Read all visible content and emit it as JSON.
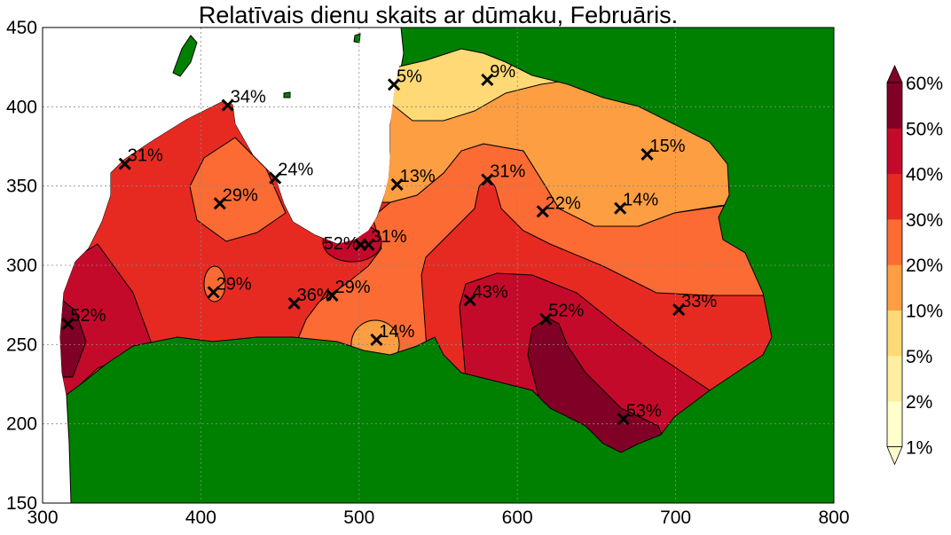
{
  "chart_data": {
    "type": "contour-map",
    "title": "Relatīvais dienu skaits ar dūmaku, Februāris.",
    "xlim": [
      300,
      800
    ],
    "ylim": [
      150,
      450
    ],
    "xticks": [
      "300",
      "400",
      "500",
      "600",
      "700",
      "800"
    ],
    "yticks": [
      "150",
      "200",
      "250",
      "300",
      "350",
      "400",
      "450"
    ],
    "grid": true,
    "colorbar": {
      "levels": [
        "1%",
        "2%",
        "5%",
        "10%",
        "20%",
        "30%",
        "40%",
        "50%",
        "60%"
      ],
      "colors": [
        "#ffffcc",
        "#ffeda0",
        "#fed976",
        "#fd9e43",
        "#fc6b33",
        "#e62a22",
        "#c40a2a",
        "#800026"
      ],
      "extend": "both",
      "placement": "right"
    },
    "land_color": "#008000",
    "stations": [
      {
        "label": "5%",
        "x": 522,
        "y": 414
      },
      {
        "label": "9%",
        "x": 581,
        "y": 417
      },
      {
        "label": "34%",
        "x": 417,
        "y": 401
      },
      {
        "label": "31%",
        "x": 352,
        "y": 364
      },
      {
        "label": "15%",
        "x": 682,
        "y": 370
      },
      {
        "label": "24%",
        "x": 447,
        "y": 355
      },
      {
        "label": "13%",
        "x": 524,
        "y": 351
      },
      {
        "label": "31%",
        "x": 581,
        "y": 354
      },
      {
        "label": "29%",
        "x": 412,
        "y": 339
      },
      {
        "label": "22%",
        "x": 616,
        "y": 334
      },
      {
        "label": "14%",
        "x": 665,
        "y": 336
      },
      {
        "label": "52%",
        "x": 501,
        "y": 313,
        "left": true
      },
      {
        "label": "31%",
        "x": 506,
        "y": 313
      },
      {
        "label": "29%",
        "x": 408,
        "y": 283
      },
      {
        "label": "36%",
        "x": 459,
        "y": 276
      },
      {
        "label": "29%",
        "x": 483,
        "y": 281
      },
      {
        "label": "43%",
        "x": 570,
        "y": 278
      },
      {
        "label": "52%",
        "x": 618,
        "y": 266
      },
      {
        "label": "33%",
        "x": 702,
        "y": 272
      },
      {
        "label": "52%",
        "x": 316,
        "y": 263
      },
      {
        "label": "14%",
        "x": 511,
        "y": 253
      },
      {
        "label": "53%",
        "x": 667,
        "y": 203
      }
    ]
  }
}
